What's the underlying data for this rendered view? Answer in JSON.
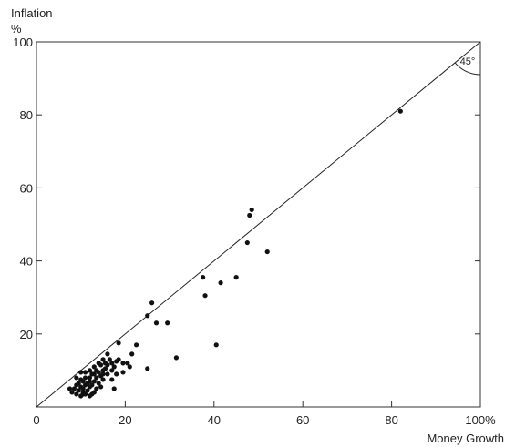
{
  "chart_data": {
    "type": "scatter",
    "title": "",
    "ylabel": "Inflation",
    "yunit": "%",
    "xlabel": "Money Growth",
    "xlim": [
      0,
      100
    ],
    "ylim": [
      0,
      100
    ],
    "xticks": [
      {
        "value": 0,
        "label": "0"
      },
      {
        "value": 20,
        "label": "20"
      },
      {
        "value": 40,
        "label": "40"
      },
      {
        "value": 60,
        "label": "60"
      },
      {
        "value": 80,
        "label": "80"
      },
      {
        "value": 100,
        "label": "100%"
      }
    ],
    "yticks": [
      {
        "value": 20,
        "label": "20"
      },
      {
        "value": 40,
        "label": "40"
      },
      {
        "value": 60,
        "label": "60"
      },
      {
        "value": 80,
        "label": "80"
      },
      {
        "value": 100,
        "label": "100"
      }
    ],
    "grid": false,
    "reference_line": {
      "slope": 1,
      "intercept": 0,
      "label": "45°"
    },
    "points": [
      [
        82,
        81
      ],
      [
        48.5,
        54
      ],
      [
        48,
        52.5
      ],
      [
        47.5,
        45
      ],
      [
        52,
        42.5
      ],
      [
        37.5,
        35.5
      ],
      [
        45,
        35.5
      ],
      [
        41.5,
        34
      ],
      [
        38,
        30.5
      ],
      [
        26,
        28.5
      ],
      [
        25,
        25
      ],
      [
        27,
        23
      ],
      [
        29.5,
        23
      ],
      [
        40.5,
        17
      ],
      [
        31.5,
        13.5
      ],
      [
        25,
        10.5
      ],
      [
        22.5,
        17
      ],
      [
        21.5,
        14.5
      ],
      [
        20.5,
        12
      ],
      [
        21,
        11
      ],
      [
        18.5,
        17.5
      ],
      [
        19.5,
        12
      ],
      [
        19.5,
        9.5
      ],
      [
        18.5,
        13
      ],
      [
        18,
        12.5
      ],
      [
        17.5,
        11
      ],
      [
        17,
        10
      ],
      [
        18,
        9
      ],
      [
        16.5,
        13
      ],
      [
        16,
        14.5
      ],
      [
        15.5,
        12
      ],
      [
        15.5,
        10.5
      ],
      [
        16,
        9
      ],
      [
        17,
        7.5
      ],
      [
        17.5,
        5
      ],
      [
        15,
        13
      ],
      [
        14.5,
        11.5
      ],
      [
        15,
        10
      ],
      [
        14,
        9.5
      ],
      [
        14.5,
        8.5
      ],
      [
        15,
        7.5
      ],
      [
        14,
        6.5
      ],
      [
        14.5,
        5.5
      ],
      [
        13.5,
        10
      ],
      [
        13,
        9
      ],
      [
        13.5,
        8
      ],
      [
        13,
        7
      ],
      [
        12.5,
        6
      ],
      [
        13.5,
        5
      ],
      [
        13,
        4
      ],
      [
        12,
        10
      ],
      [
        12.5,
        9
      ],
      [
        12,
        8
      ],
      [
        12,
        7
      ],
      [
        11.5,
        6.5
      ],
      [
        12,
        5.5
      ],
      [
        11.5,
        4.5
      ],
      [
        12.5,
        3.5
      ],
      [
        11,
        9.5
      ],
      [
        11,
        8
      ],
      [
        10.5,
        7
      ],
      [
        11,
        6
      ],
      [
        10.5,
        5
      ],
      [
        10.5,
        4
      ],
      [
        10,
        9.5
      ],
      [
        10,
        7.5
      ],
      [
        9.5,
        6.5
      ],
      [
        10,
        5.5
      ],
      [
        9.5,
        4.5
      ],
      [
        9,
        3.5
      ],
      [
        9,
        8
      ],
      [
        8.5,
        5
      ],
      [
        8,
        4
      ],
      [
        7.5,
        5
      ],
      [
        10.5,
        3.5
      ],
      [
        16,
        11.5
      ],
      [
        17,
        12
      ],
      [
        14,
        12
      ],
      [
        15,
        9
      ],
      [
        13,
        11
      ],
      [
        12,
        3
      ],
      [
        11,
        3.5
      ],
      [
        9,
        6
      ],
      [
        10,
        3
      ]
    ]
  }
}
